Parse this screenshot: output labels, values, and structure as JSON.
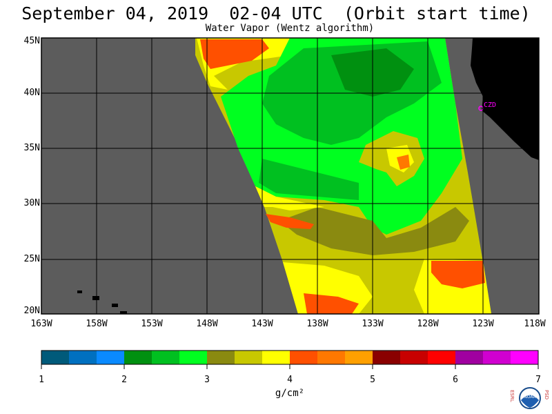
{
  "title": "September 04, 2019  02-04 UTC  (Orbit start time)",
  "subtitle": "Water Vapor (Wentz algorithm)",
  "lat_labels": [
    "45N",
    "40N",
    "35N",
    "30N",
    "25N",
    "20N"
  ],
  "lon_labels": [
    "163W",
    "158W",
    "153W",
    "148W",
    "143W",
    "138W",
    "133W",
    "128W",
    "123W",
    "118W"
  ],
  "colorbar": {
    "tick_labels": [
      "1",
      "2",
      "3",
      "4",
      "5",
      "6",
      "7"
    ],
    "units": "g/cm²",
    "colors": [
      "#005a7a",
      "#0070c0",
      "#0a8aff",
      "#009010",
      "#00c020",
      "#00ff20",
      "#8a8a10",
      "#c8c800",
      "#ffff00",
      "#ff5000",
      "#ff7800",
      "#ffa000",
      "#8a0000",
      "#c80000",
      "#ff0000",
      "#a000a0",
      "#d000d0",
      "#ff00ff"
    ]
  },
  "station_label": "CZD",
  "map_colors": {
    "no_data": "#5c5c5c",
    "land": "#000000",
    "station": "#ff00ff"
  },
  "logo": {
    "left_letters": "ESRL",
    "right_letters": "PSD",
    "text": "NOAA"
  }
}
